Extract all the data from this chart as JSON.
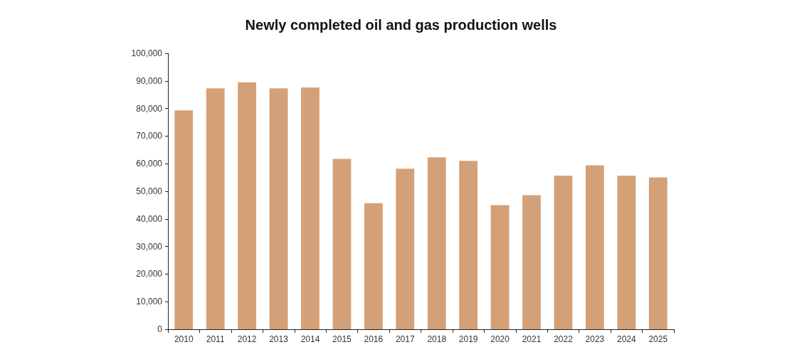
{
  "chart_data": {
    "type": "bar",
    "title": "Newly completed oil and gas production wells",
    "categories": [
      "2010",
      "2011",
      "2012",
      "2013",
      "2014",
      "2015",
      "2016",
      "2017",
      "2018",
      "2019",
      "2020",
      "2021",
      "2022",
      "2023",
      "2024",
      "2025"
    ],
    "values": [
      79300,
      87300,
      89500,
      87300,
      87600,
      61700,
      45700,
      58200,
      62300,
      61000,
      45000,
      48600,
      55700,
      59400,
      55700,
      55000
    ],
    "color": "#d4a077",
    "ylim": [
      0,
      100000
    ],
    "yticks": [
      0,
      {
        "value": 10000,
        "label": "10,000"
      },
      {
        "value": 20000,
        "label": "20,000"
      },
      {
        "value": 30000,
        "label": "30,000"
      },
      {
        "value": 40000,
        "label": "40,000"
      },
      {
        "value": 50000,
        "label": "50,000"
      },
      {
        "value": 60000,
        "label": "60,000"
      },
      {
        "value": 70000,
        "label": "70,000"
      },
      {
        "value": 80000,
        "label": "80,000"
      },
      {
        "value": 90000,
        "label": "90,000"
      },
      {
        "value": 100000,
        "label": "100,000"
      }
    ],
    "grid": false
  }
}
